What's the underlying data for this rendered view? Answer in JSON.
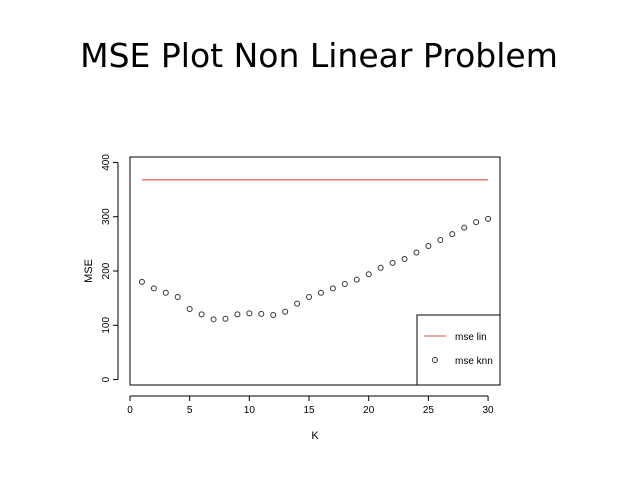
{
  "slide": {
    "title": "MSE Plot Non Linear Problem"
  },
  "chart_data": {
    "type": "scatter",
    "xlabel": "K",
    "ylabel": "MSE",
    "xlim": [
      0,
      31
    ],
    "ylim": [
      -10,
      410
    ],
    "xticks": [
      0,
      5,
      10,
      15,
      20,
      25,
      30
    ],
    "yticks": [
      0,
      100,
      200,
      300,
      400
    ],
    "grid": false,
    "legend_position": "bottom-right",
    "series": [
      {
        "name": "mse lin",
        "kind": "line",
        "color": "#e8706a",
        "x": [
          1,
          30
        ],
        "y": [
          368,
          368
        ]
      },
      {
        "name": "mse knn",
        "kind": "points",
        "color": "#333333",
        "x": [
          1,
          2,
          3,
          4,
          5,
          6,
          7,
          8,
          9,
          10,
          11,
          12,
          13,
          14,
          15,
          16,
          17,
          18,
          19,
          20,
          21,
          22,
          23,
          24,
          25,
          26,
          27,
          28,
          29,
          30
        ],
        "y": [
          180,
          168,
          160,
          152,
          130,
          120,
          111,
          112,
          120,
          122,
          121,
          119,
          125,
          140,
          152,
          160,
          168,
          176,
          184,
          194,
          206,
          215,
          222,
          234,
          246,
          257,
          268,
          280,
          290,
          296
        ]
      }
    ]
  }
}
